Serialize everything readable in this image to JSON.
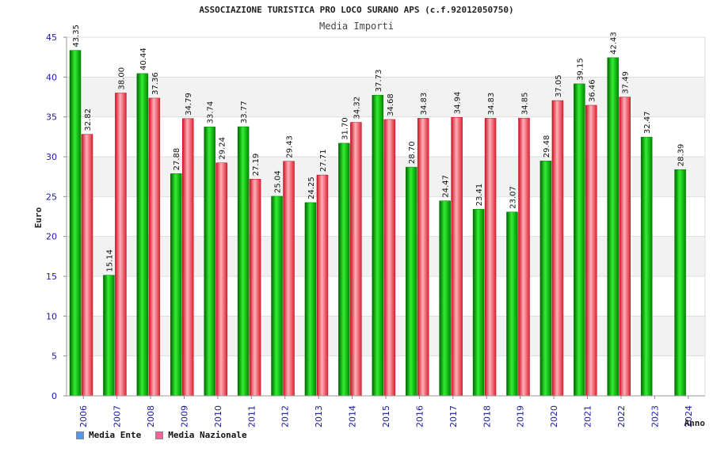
{
  "title": "ASSOCIAZIONE TURISTICA PRO LOCO SURANO APS (c.f.92012050750)",
  "subtitle": "Media Importi",
  "legend": {
    "ente_label": "Media Ente",
    "ente_color": "#5599ee",
    "nazionale_label": "Media Nazionale",
    "nazionale_color": "#ee6699"
  },
  "chart_data": {
    "type": "bar",
    "title": "Media Importi",
    "xlabel": "Anno",
    "ylabel": "Euro",
    "ylim": [
      0,
      45
    ],
    "yticks": [
      0,
      5,
      10,
      15,
      20,
      25,
      30,
      35,
      40,
      45
    ],
    "grid": true,
    "categories": [
      "2006",
      "2007",
      "2008",
      "2009",
      "2010",
      "2011",
      "2012",
      "2013",
      "2014",
      "2015",
      "2016",
      "2017",
      "2018",
      "2019",
      "2020",
      "2021",
      "2022",
      "2023",
      "2024"
    ],
    "series": [
      {
        "name": "Media Ente",
        "color": "#00b000",
        "values": [
          43.35,
          15.14,
          40.44,
          27.88,
          33.74,
          33.77,
          25.04,
          24.25,
          31.7,
          37.73,
          28.7,
          24.47,
          23.41,
          23.07,
          29.48,
          39.15,
          42.43,
          32.47,
          28.39
        ]
      },
      {
        "name": "Media Nazionale",
        "color": "#e03040",
        "values": [
          32.82,
          38.0,
          37.36,
          34.79,
          29.24,
          27.19,
          29.43,
          27.71,
          34.32,
          34.68,
          34.83,
          34.94,
          34.83,
          34.85,
          37.05,
          36.46,
          37.49,
          null,
          null
        ]
      }
    ]
  }
}
